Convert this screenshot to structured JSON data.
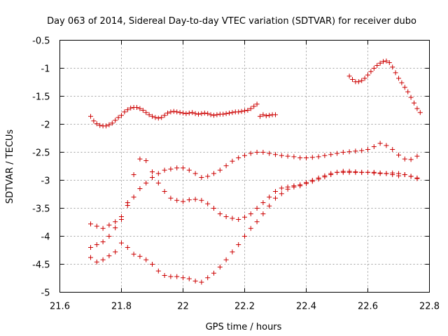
{
  "chart_data": {
    "type": "scatter",
    "title": "Day 063 of 2014, Sidereal Day-to-day VTEC variation (SDTVAR) for receiver dubo",
    "xlabel": "GPS time / hours",
    "ylabel": "SDTVAR / TECUs",
    "xlim": [
      21.6,
      22.8
    ],
    "ylim": [
      -5,
      -0.5
    ],
    "xticks": [
      "21.6",
      "21.8",
      "22",
      "22.2",
      "22.4",
      "22.6",
      "22.8"
    ],
    "yticks": [
      "-0.5",
      "-1",
      "-1.5",
      "-2",
      "-2.5",
      "-3",
      "-3.5",
      "-4",
      "-4.5",
      "-5"
    ],
    "marker": "plus",
    "grid": true,
    "color": "#cc0000",
    "series": [
      {
        "name": "series-1",
        "x": [
          21.7,
          21.71,
          21.72,
          21.73,
          21.74,
          21.75,
          21.76,
          21.77,
          21.78,
          21.79,
          21.8,
          21.81,
          21.82,
          21.83,
          21.84,
          21.85,
          21.86,
          21.87,
          21.88,
          21.89,
          21.9,
          21.91,
          21.92,
          21.93,
          21.94,
          21.95,
          21.96,
          21.97,
          21.98,
          21.99,
          22.0,
          22.01,
          22.02,
          22.03,
          22.04,
          22.05,
          22.06,
          22.07,
          22.08,
          22.09,
          22.1,
          22.11,
          22.12,
          22.13,
          22.14,
          22.15,
          22.16,
          22.17,
          22.18,
          22.19,
          22.2,
          22.21,
          22.22,
          22.23,
          22.24,
          22.25,
          22.26,
          22.27,
          22.28,
          22.29,
          22.3
        ],
        "y": [
          -1.86,
          -1.94,
          -1.99,
          -2.02,
          -2.03,
          -2.03,
          -2.01,
          -1.98,
          -1.93,
          -1.88,
          -1.84,
          -1.78,
          -1.74,
          -1.71,
          -1.7,
          -1.7,
          -1.72,
          -1.75,
          -1.79,
          -1.83,
          -1.86,
          -1.88,
          -1.89,
          -1.88,
          -1.84,
          -1.8,
          -1.78,
          -1.77,
          -1.78,
          -1.79,
          -1.8,
          -1.81,
          -1.8,
          -1.79,
          -1.81,
          -1.82,
          -1.81,
          -1.8,
          -1.81,
          -1.83,
          -1.84,
          -1.83,
          -1.82,
          -1.82,
          -1.81,
          -1.8,
          -1.79,
          -1.78,
          -1.78,
          -1.77,
          -1.76,
          -1.75,
          -1.72,
          -1.68,
          -1.64,
          -1.86,
          -1.83,
          -1.85,
          -1.84,
          -1.83,
          -1.83
        ]
      },
      {
        "name": "series-2",
        "x": [
          22.54,
          22.55,
          22.56,
          22.57,
          22.58,
          22.59,
          22.6,
          22.61,
          22.62,
          22.63,
          22.64,
          22.65,
          22.66,
          22.67,
          22.68,
          22.69,
          22.7,
          22.71,
          22.72,
          22.73,
          22.74,
          22.75,
          22.76,
          22.77
        ],
        "y": [
          -1.14,
          -1.2,
          -1.24,
          -1.24,
          -1.22,
          -1.18,
          -1.12,
          -1.06,
          -1.0,
          -0.95,
          -0.91,
          -0.88,
          -0.87,
          -0.9,
          -0.98,
          -1.08,
          -1.18,
          -1.26,
          -1.34,
          -1.42,
          -1.52,
          -1.62,
          -1.72,
          -1.79
        ]
      },
      {
        "name": "series-3",
        "x": [
          21.7,
          21.72,
          21.74,
          21.76,
          21.78,
          21.8,
          21.82,
          21.84,
          21.86,
          21.88,
          21.9,
          21.92,
          21.94,
          21.96,
          21.98,
          22.0,
          22.02,
          22.04,
          22.06,
          22.08,
          22.1,
          22.12,
          22.14,
          22.16,
          22.18,
          22.2,
          22.22,
          22.24,
          22.26,
          22.28,
          22.3,
          22.32,
          22.34,
          22.36,
          22.38,
          22.4,
          22.42,
          22.44,
          22.46,
          22.48,
          22.5,
          22.52,
          22.54,
          22.56,
          22.58,
          22.6,
          22.62,
          22.64,
          22.66,
          22.68,
          22.7,
          22.72,
          22.74,
          22.76
        ],
        "y": [
          -4.2,
          -4.15,
          -4.1,
          -4.0,
          -3.85,
          -3.65,
          -3.45,
          -3.3,
          -3.15,
          -3.05,
          -2.95,
          -2.88,
          -2.82,
          -2.8,
          -2.78,
          -2.78,
          -2.82,
          -2.88,
          -2.95,
          -2.93,
          -2.88,
          -2.82,
          -2.74,
          -2.66,
          -2.6,
          -2.56,
          -2.52,
          -2.5,
          -2.5,
          -2.52,
          -2.54,
          -2.56,
          -2.57,
          -2.58,
          -2.6,
          -2.6,
          -2.59,
          -2.58,
          -2.56,
          -2.54,
          -2.52,
          -2.5,
          -2.49,
          -2.48,
          -2.47,
          -2.45,
          -2.4,
          -2.34,
          -2.38,
          -2.45,
          -2.55,
          -2.62,
          -2.63,
          -2.57
        ]
      },
      {
        "name": "series-4",
        "x": [
          21.7,
          21.72,
          21.74,
          21.76,
          21.78,
          21.8,
          21.82,
          21.84,
          21.86,
          21.88,
          21.9,
          21.92,
          21.94,
          21.96,
          21.98,
          22.0,
          22.02,
          22.04,
          22.06,
          22.08,
          22.1,
          22.12,
          22.14,
          22.16,
          22.18,
          22.2,
          22.22,
          22.24,
          22.26,
          22.28,
          22.3,
          22.32,
          22.34,
          22.36,
          22.38,
          22.4,
          22.42,
          22.44,
          22.46,
          22.48,
          22.5,
          22.52,
          22.54,
          22.56,
          22.58,
          22.6,
          22.62,
          22.64,
          22.66,
          22.68,
          22.7,
          22.72,
          22.74,
          22.76
        ],
        "y": [
          -3.78,
          -3.82,
          -3.86,
          -3.8,
          -3.74,
          -3.7,
          -3.4,
          -2.9,
          -2.62,
          -2.65,
          -2.85,
          -3.05,
          -3.2,
          -3.32,
          -3.36,
          -3.38,
          -3.35,
          -3.34,
          -3.36,
          -3.42,
          -3.5,
          -3.6,
          -3.65,
          -3.68,
          -3.7,
          -3.66,
          -3.6,
          -3.5,
          -3.4,
          -3.3,
          -3.2,
          -3.14,
          -3.12,
          -3.1,
          -3.08,
          -3.04,
          -3.0,
          -2.96,
          -2.92,
          -2.88,
          -2.86,
          -2.86,
          -2.86,
          -2.86,
          -2.86,
          -2.86,
          -2.86,
          -2.87,
          -2.88,
          -2.9,
          -2.92,
          -2.9,
          -2.93,
          -2.97
        ]
      },
      {
        "name": "series-5",
        "x": [
          21.7,
          21.72,
          21.74,
          21.76,
          21.78,
          21.8,
          21.82,
          21.84,
          21.86,
          21.88,
          21.9,
          21.92,
          21.94,
          21.96,
          21.98,
          22.0,
          22.02,
          22.04,
          22.06,
          22.08,
          22.1,
          22.12,
          22.14,
          22.16,
          22.18,
          22.2,
          22.22,
          22.24,
          22.26,
          22.28,
          22.3,
          22.32,
          22.34,
          22.36,
          22.38,
          22.4,
          22.42,
          22.44,
          22.46,
          22.48,
          22.5,
          22.52,
          22.54,
          22.56,
          22.58,
          22.6,
          22.62,
          22.64,
          22.66,
          22.68,
          22.7,
          22.72,
          22.74,
          22.76
        ],
        "y": [
          -4.38,
          -4.46,
          -4.42,
          -4.35,
          -4.28,
          -4.12,
          -4.2,
          -4.32,
          -4.36,
          -4.42,
          -4.5,
          -4.62,
          -4.7,
          -4.72,
          -4.72,
          -4.74,
          -4.76,
          -4.8,
          -4.82,
          -4.74,
          -4.66,
          -4.55,
          -4.42,
          -4.28,
          -4.15,
          -4.0,
          -3.86,
          -3.74,
          -3.6,
          -3.46,
          -3.32,
          -3.24,
          -3.16,
          -3.12,
          -3.1,
          -3.06,
          -3.02,
          -2.98,
          -2.94,
          -2.9,
          -2.86,
          -2.84,
          -2.84,
          -2.85,
          -2.86,
          -2.86,
          -2.87,
          -2.88,
          -2.88,
          -2.87,
          -2.88,
          -2.9,
          -2.93,
          -2.96
        ]
      }
    ]
  }
}
